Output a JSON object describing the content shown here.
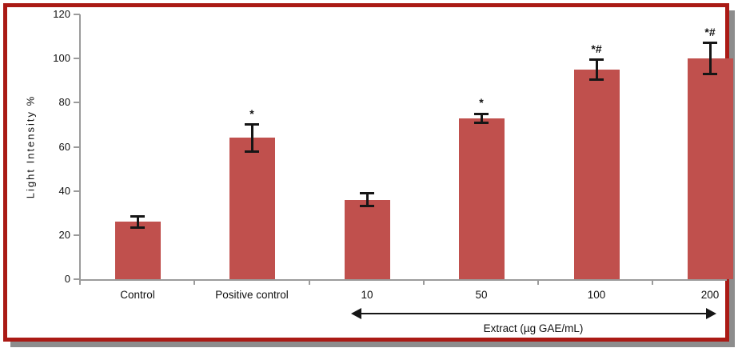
{
  "chart_data": {
    "type": "bar",
    "title": "",
    "xlabel": "",
    "ylabel": "Light Intensity %",
    "categories": [
      "Control",
      "Positive control",
      "10",
      "50",
      "100",
      "200"
    ],
    "values": [
      26,
      64,
      36,
      73,
      95,
      100
    ],
    "error_bars": [
      2.5,
      6,
      3,
      2,
      4.5,
      7
    ],
    "significance_annotations": [
      "",
      "*",
      "",
      "*",
      "*#",
      "*#"
    ],
    "y_ticks": [
      0,
      20,
      40,
      60,
      80,
      100,
      120
    ],
    "ylim": [
      0,
      120
    ],
    "grid": false,
    "legend": false,
    "bar_color": "#c0504d",
    "error_bar_color": "#161616",
    "axis_color": "#9b9b9b",
    "group_annotation": {
      "label": "Extract (µg GAE/mL)",
      "applies_to_categories": [
        "10",
        "50",
        "100",
        "200"
      ],
      "arrow_style": "double-headed"
    }
  },
  "frame": {
    "border_color": "#aa1a15",
    "shadow_color": "#8d8d8d",
    "background": "#ffffff"
  }
}
